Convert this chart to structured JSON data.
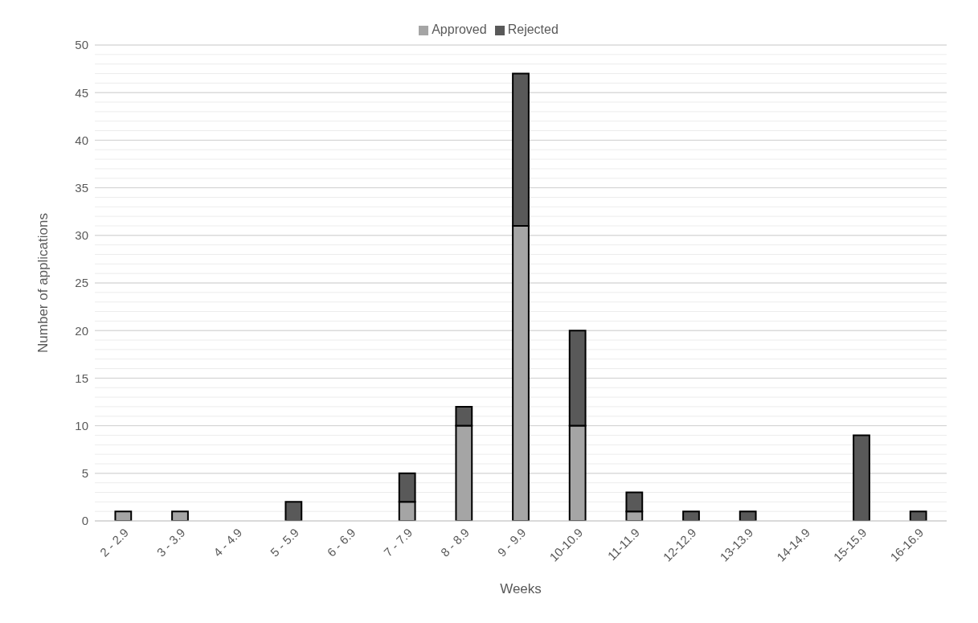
{
  "chart_data": {
    "type": "bar",
    "stacked": true,
    "xlabel": "Weeks",
    "ylabel": "Number of applications",
    "categories": [
      "2 - 2.9",
      "3 - 3.9",
      "4 - 4.9",
      "5 - 5.9",
      "6 - 6.9",
      "7 - 7.9",
      "8 - 8.9",
      "9 - 9.9",
      "10-10.9",
      "11-11.9",
      "12-12.9",
      "13-13.9",
      "14-14.9",
      "15-15.9",
      "16-16.9"
    ],
    "series": [
      {
        "name": "Approved",
        "color": "#a5a5a5",
        "values": [
          1,
          1,
          0,
          0,
          0,
          2,
          10,
          31,
          10,
          1,
          0,
          0,
          0,
          0,
          0
        ]
      },
      {
        "name": "Rejected",
        "color": "#595959",
        "values": [
          0,
          0,
          0,
          2,
          0,
          3,
          2,
          16,
          10,
          2,
          1,
          1,
          0,
          9,
          1
        ]
      }
    ],
    "ylim": [
      0,
      50
    ],
    "yticks": [
      0,
      {
        "value": 1,
        "label": null
      },
      {
        "value": 2,
        "label": null
      },
      {
        "value": 3,
        "label": null
      },
      {
        "value": 4,
        "label": null
      },
      5,
      {
        "value": 6,
        "label": null
      },
      {
        "value": 7,
        "label": null
      },
      {
        "value": 8,
        "label": null
      },
      {
        "value": 9,
        "label": null
      },
      10,
      {
        "value": 11,
        "label": null
      },
      {
        "value": 12,
        "label": null
      },
      {
        "value": 13,
        "label": null
      },
      {
        "value": 14,
        "label": null
      },
      15,
      {
        "value": 16,
        "label": null
      },
      {
        "value": 17,
        "label": null
      },
      {
        "value": 18,
        "label": null
      },
      {
        "value": 19,
        "label": null
      },
      20,
      {
        "value": 21,
        "label": null
      },
      {
        "value": 22,
        "label": null
      },
      {
        "value": 23,
        "label": null
      },
      {
        "value": 24,
        "label": null
      },
      25,
      {
        "value": 26,
        "label": null
      },
      {
        "value": 27,
        "label": null
      },
      {
        "value": 28,
        "label": null
      },
      {
        "value": 29,
        "label": null
      },
      30,
      {
        "value": 31,
        "label": null
      },
      {
        "value": 32,
        "label": null
      },
      {
        "value": 33,
        "label": null
      },
      {
        "value": 34,
        "label": null
      },
      35,
      {
        "value": 36,
        "label": null
      },
      {
        "value": 37,
        "label": null
      },
      {
        "value": 38,
        "label": null
      },
      {
        "value": 39,
        "label": null
      },
      40,
      {
        "value": 41,
        "label": null
      },
      {
        "value": 42,
        "label": null
      },
      {
        "value": 43,
        "label": null
      },
      {
        "value": 44,
        "label": null
      },
      45,
      {
        "value": 46,
        "label": null
      },
      {
        "value": 47,
        "label": null
      },
      {
        "value": 48,
        "label": null
      },
      {
        "value": 49,
        "label": null
      },
      50
    ],
    "grid": "y",
    "legend": "top"
  }
}
